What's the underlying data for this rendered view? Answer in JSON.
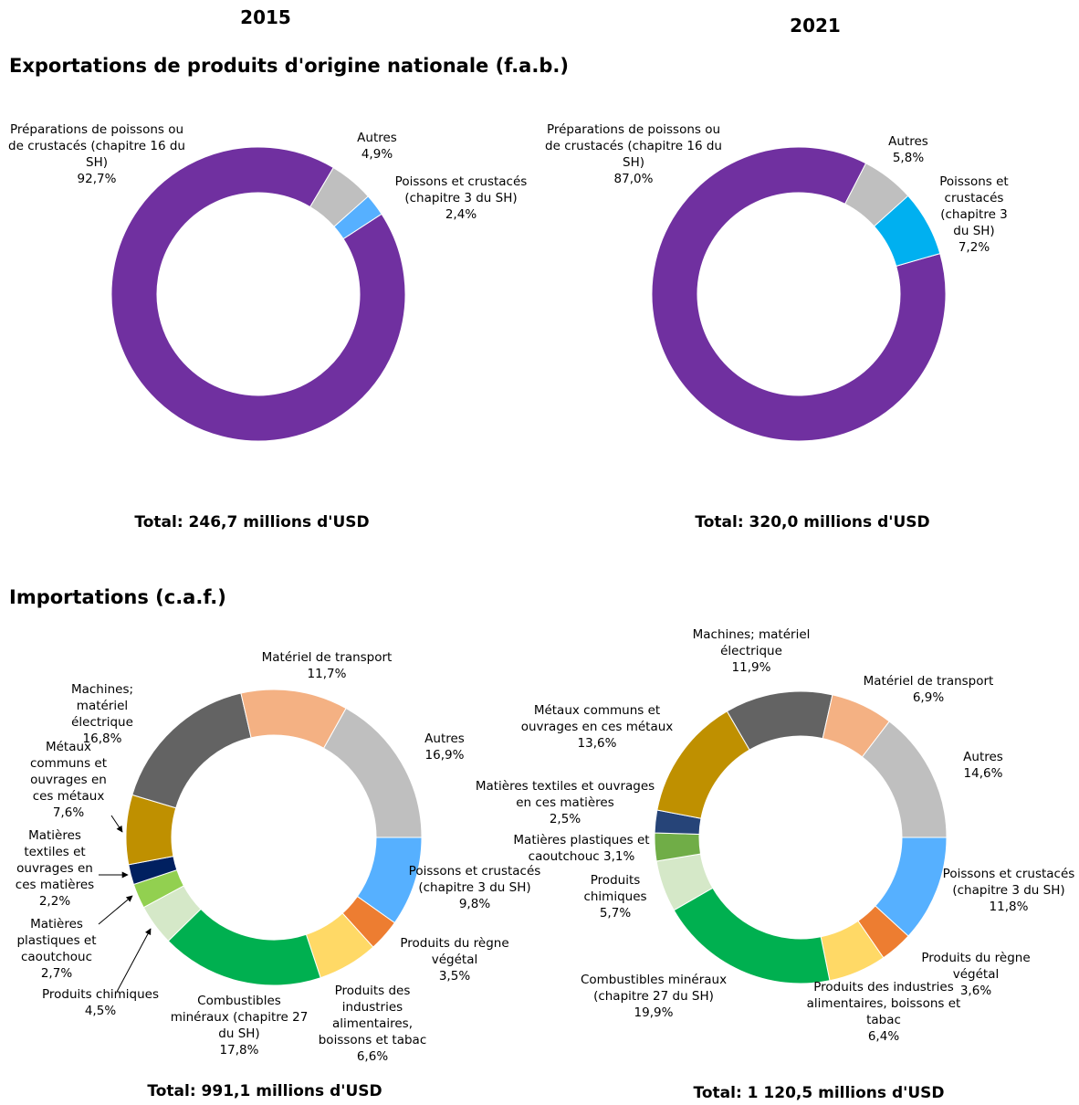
{
  "columns": [
    "2015",
    "2021"
  ],
  "sections": [
    "Exportations de produits d'origine nationale (f.a.b.)",
    "Importations (c.a.f.)"
  ],
  "chart_data": [
    {
      "type": "pie",
      "donut": true,
      "categories": [
        "Préparations de poissons ou de crustacés (chapitre 16 du SH)",
        "Autres",
        "Poissons et crustacés (chapitre 3 du SH)"
      ],
      "values": [
        92.7,
        4.9,
        2.4
      ],
      "value_labels": [
        "92,7%",
        "4,9%",
        "2,4%"
      ],
      "colors": [
        "#7030a0",
        "#bfbfbf",
        "#56b0ff"
      ],
      "total": "Total: 246,7 millions d'USD"
    },
    {
      "type": "pie",
      "donut": true,
      "categories": [
        "Préparations de poissons ou de crustacés (chapitre 16 du SH)",
        "Autres",
        "Poissons et crustacés (chapitre 3 du SH)"
      ],
      "values": [
        87.0,
        5.8,
        7.2
      ],
      "value_labels": [
        "87,0%",
        "5,8%",
        "7,2%"
      ],
      "colors": [
        "#7030a0",
        "#bfbfbf",
        "#00b0f0"
      ],
      "total": "Total: 320,0 millions d'USD"
    },
    {
      "type": "pie",
      "donut": true,
      "categories": [
        "Poissons et crustacés (chapitre 3 du SH)",
        "Produits du règne végétal",
        "Produits des industries alimentaires, boissons et tabac",
        "Combustibles minéraux (chapitre 27 du SH)",
        "Produits chimiques",
        "Matières plastiques et caoutchouc",
        "Matières textiles et ouvrages en ces matières",
        "Métaux communs et ouvrages en ces métaux",
        "Machines; matériel électrique",
        "Matériel de transport",
        "Autres"
      ],
      "values": [
        9.8,
        3.5,
        6.6,
        17.8,
        4.5,
        2.7,
        2.2,
        7.6,
        16.8,
        11.7,
        16.9
      ],
      "value_labels": [
        "9,8%",
        "3,5%",
        "6,6%",
        "17,8%",
        "4,5%",
        "2,7%",
        "2,2%",
        "7,6%",
        "16,8%",
        "11,7%",
        "16,9%"
      ],
      "colors": [
        "#56b0ff",
        "#ed7d31",
        "#ffd966",
        "#00b050",
        "#d5e8c8",
        "#92d050",
        "#002060",
        "#bf9000",
        "#636363",
        "#f4b183",
        "#bfbfbf"
      ],
      "total": "Total: 991,1 millions d'USD"
    },
    {
      "type": "pie",
      "donut": true,
      "categories": [
        "Poissons et crustacés (chapitre 3 du SH)",
        "Produits du règne végétal",
        "Produits des industries alimentaires, boissons et tabac",
        "Combustibles minéraux (chapitre 27 du SH)",
        "Produits chimiques",
        "Matières plastiques et caoutchouc",
        "Matières textiles et ouvrages en ces matières",
        "Métaux communs et ouvrages en ces métaux",
        "Machines; matériel électrique",
        "Matériel de transport",
        "Autres"
      ],
      "values": [
        11.8,
        3.6,
        6.4,
        19.9,
        5.7,
        3.1,
        2.5,
        13.6,
        11.9,
        6.9,
        14.6
      ],
      "value_labels": [
        "11,8%",
        "3,6%",
        "6,4%",
        "19,9%",
        "5,7%",
        "3,1%",
        "2,5%",
        "13,6%",
        "11,9%",
        "6,9%",
        "14,6%"
      ],
      "colors": [
        "#56b0ff",
        "#ed7d31",
        "#ffd966",
        "#00b050",
        "#d5e8c8",
        "#70ad47",
        "#264478",
        "#bf9000",
        "#636363",
        "#f4b183",
        "#bfbfbf"
      ],
      "total": "Total: 1 120,5 millions d'USD"
    }
  ]
}
